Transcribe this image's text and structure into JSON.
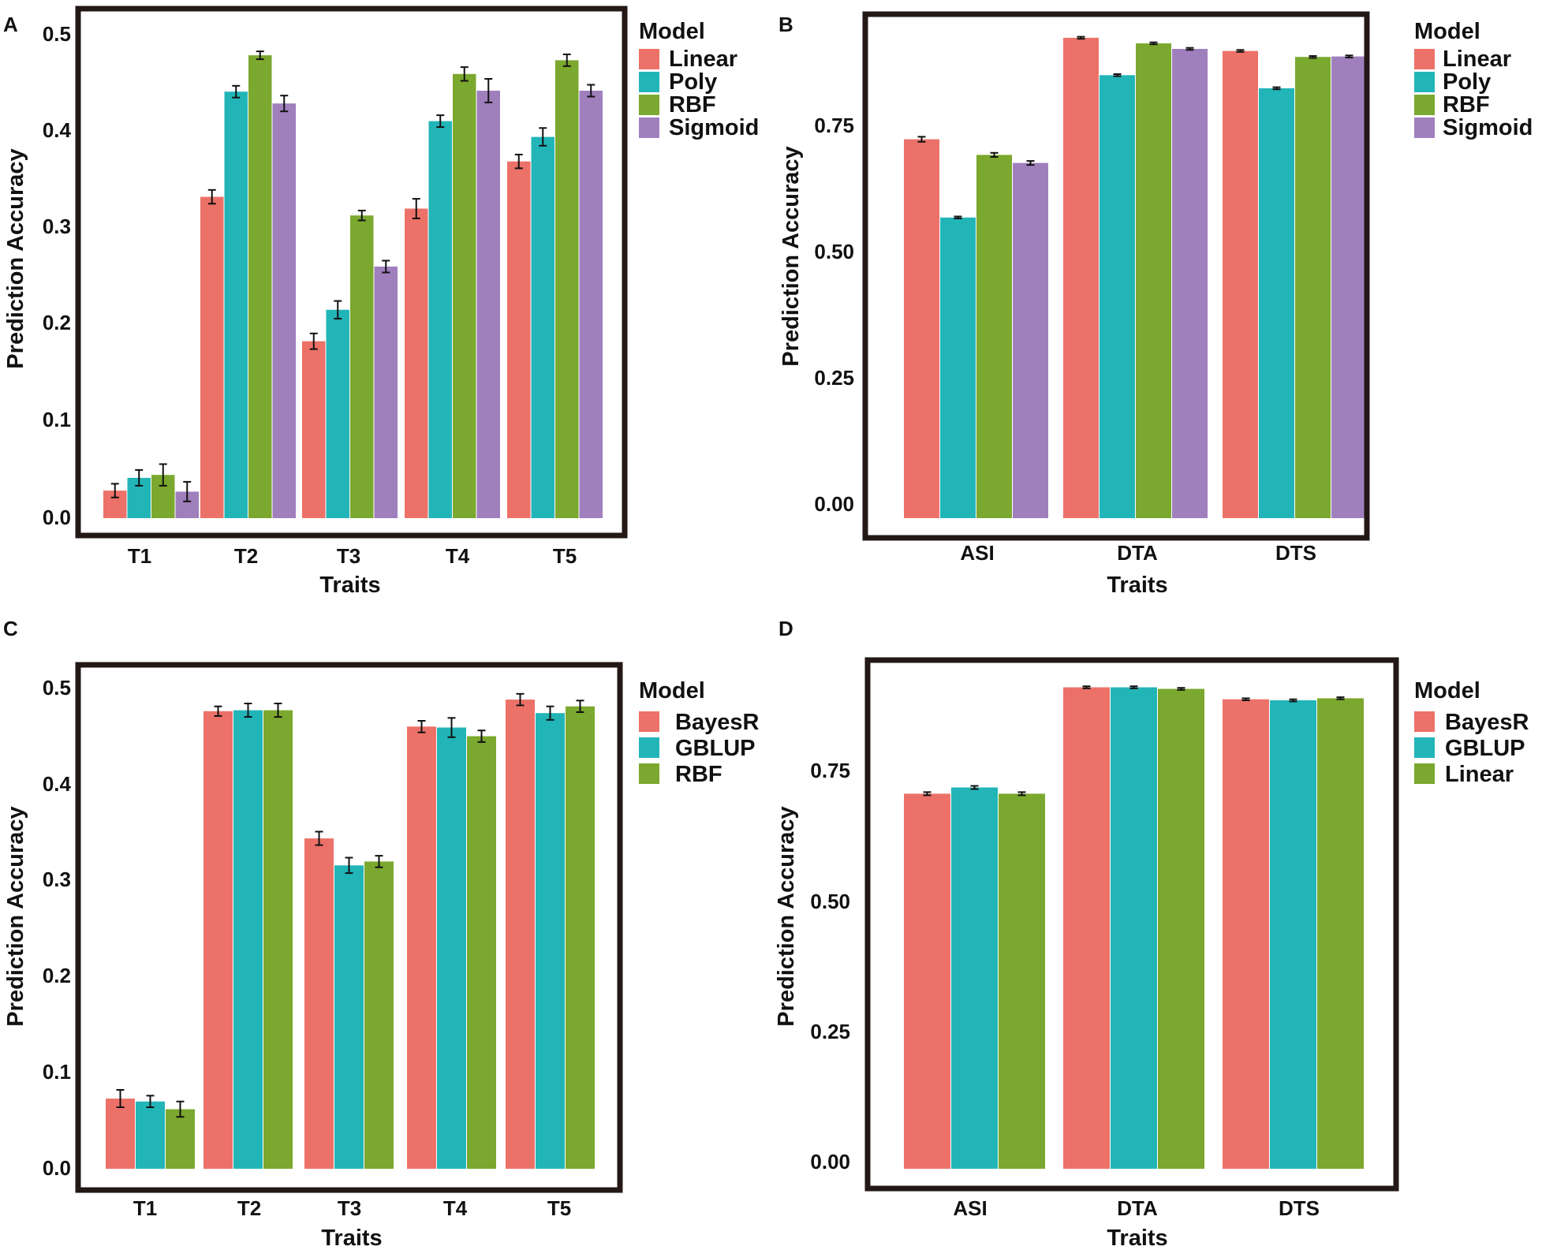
{
  "colors": {
    "red": "#ec7168",
    "teal": "#22b5b8",
    "green": "#7ba82e",
    "purple": "#a07fbd",
    "frame": "#231815"
  },
  "chart_data": [
    {
      "panel": "A",
      "type": "bar",
      "xlabel": "Traits",
      "ylabel": "Prediction Accuracy",
      "ylim": [
        0,
        0.5
      ],
      "yticks": [
        "0.0",
        "0.1",
        "0.2",
        "0.3",
        "0.4",
        "0.5"
      ],
      "categories": [
        "T1",
        "T2",
        "T3",
        "T4",
        "T5"
      ],
      "legend_title": "Model",
      "legend_position": "right",
      "series": [
        {
          "name": "Linear",
          "color": "#ec7168",
          "values": [
            0.028,
            0.327,
            0.18,
            0.315,
            0.363
          ],
          "errors": [
            0.007,
            0.007,
            0.008,
            0.01,
            0.007
          ]
        },
        {
          "name": "Poly",
          "color": "#22b5b8",
          "values": [
            0.041,
            0.434,
            0.212,
            0.404,
            0.388
          ],
          "errors": [
            0.008,
            0.006,
            0.009,
            0.006,
            0.009
          ]
        },
        {
          "name": "RBF",
          "color": "#7ba82e",
          "values": [
            0.044,
            0.471,
            0.308,
            0.452,
            0.466
          ],
          "errors": [
            0.011,
            0.004,
            0.005,
            0.007,
            0.006
          ]
        },
        {
          "name": "Sigmoid",
          "color": "#a07fbd",
          "values": [
            0.027,
            0.422,
            0.256,
            0.435,
            0.435
          ],
          "errors": [
            0.01,
            0.008,
            0.006,
            0.012,
            0.006
          ]
        }
      ]
    },
    {
      "panel": "B",
      "type": "bar",
      "xlabel": "Traits",
      "ylabel": "Prediction Accuracy",
      "ylim": [
        -0.03,
        0.97
      ],
      "yticks": [
        "0.00",
        "0.25",
        "0.50",
        "0.75"
      ],
      "categories": [
        "ASI",
        "DTA",
        "DTS"
      ],
      "legend_title": "Model",
      "legend_position": "right",
      "series": [
        {
          "name": "Linear",
          "color": "#ec7168",
          "values": [
            0.721,
            0.922,
            0.896
          ],
          "errors": [
            0.005,
            0.002,
            0.002
          ]
        },
        {
          "name": "Poly",
          "color": "#22b5b8",
          "values": [
            0.566,
            0.848,
            0.822
          ],
          "errors": [
            0.002,
            0.002,
            0.002
          ]
        },
        {
          "name": "RBF",
          "color": "#7ba82e",
          "values": [
            0.69,
            0.911,
            0.884
          ],
          "errors": [
            0.004,
            0.002,
            0.002
          ]
        },
        {
          "name": "Sigmoid",
          "color": "#a07fbd",
          "values": [
            0.674,
            0.9,
            0.885
          ],
          "errors": [
            0.004,
            0.002,
            0.002
          ]
        }
      ]
    },
    {
      "panel": "C",
      "type": "bar",
      "xlabel": "Traits",
      "ylabel": "Prediction Accuracy",
      "ylim": [
        0,
        0.52
      ],
      "yticks": [
        "0.0",
        "0.1",
        "0.2",
        "0.3",
        "0.4",
        "0.5"
      ],
      "categories": [
        "T1",
        "T2",
        "T3",
        "T4",
        "T5"
      ],
      "legend_title": "Model",
      "legend_position": "right",
      "series": [
        {
          "name": "BayesR",
          "color": "#ec7168",
          "values": [
            0.072,
            0.474,
            0.342,
            0.458,
            0.486
          ],
          "errors": [
            0.009,
            0.005,
            0.007,
            0.006,
            0.006
          ]
        },
        {
          "name": "GBLUP",
          "color": "#22b5b8",
          "values": [
            0.069,
            0.475,
            0.314,
            0.457,
            0.472
          ],
          "errors": [
            0.006,
            0.007,
            0.008,
            0.01,
            0.007
          ]
        },
        {
          "name": "RBF",
          "color": "#7ba82e",
          "values": [
            0.061,
            0.475,
            0.318,
            0.448,
            0.479
          ],
          "errors": [
            0.008,
            0.007,
            0.006,
            0.006,
            0.006
          ]
        }
      ]
    },
    {
      "panel": "D",
      "type": "bar",
      "xlabel": "Traits",
      "ylabel": "Prediction Accuracy",
      "ylim": [
        -0.03,
        0.97
      ],
      "yticks": [
        "0.00",
        "0.25",
        "0.50",
        "0.75"
      ],
      "categories": [
        "ASI",
        "DTA",
        "DTS"
      ],
      "legend_title": "Model",
      "legend_position": "right",
      "series": [
        {
          "name": "BayesR",
          "color": "#ec7168",
          "values": [
            0.704,
            0.908,
            0.885
          ],
          "errors": [
            0.003,
            0.002,
            0.002
          ]
        },
        {
          "name": "GBLUP",
          "color": "#22b5b8",
          "values": [
            0.716,
            0.908,
            0.883
          ],
          "errors": [
            0.003,
            0.002,
            0.002
          ]
        },
        {
          "name": "Linear",
          "color": "#7ba82e",
          "values": [
            0.704,
            0.905,
            0.887
          ],
          "errors": [
            0.003,
            0.002,
            0.002
          ]
        }
      ]
    }
  ]
}
